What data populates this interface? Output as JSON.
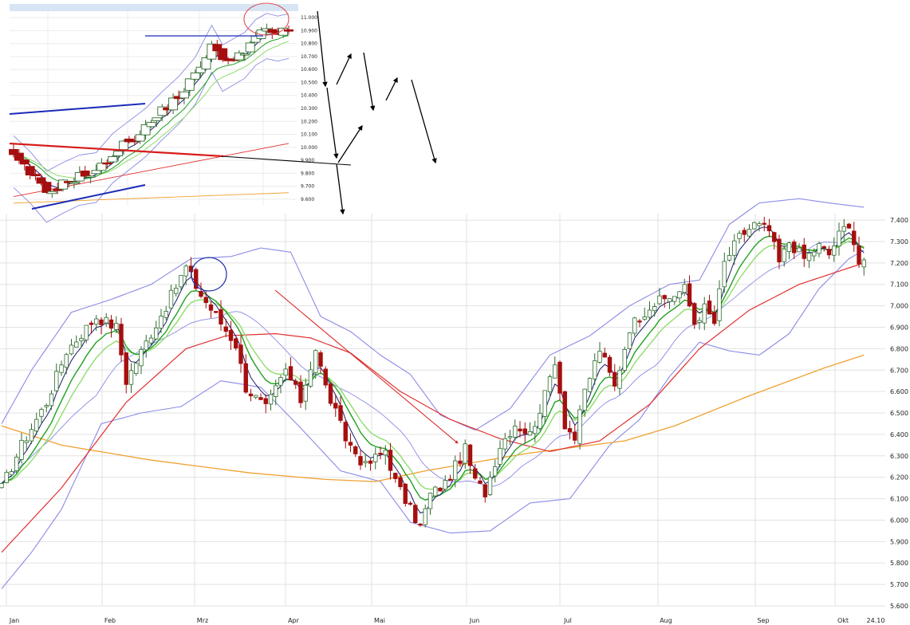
{
  "colors": {
    "bull_fill": "#ffffff",
    "bear_fill": "#a50f0f",
    "candle_edge_bull": "#2e6b2e",
    "sma_fast": "#1a1a6e",
    "ema_green1": "#1fa01f",
    "ema_green2": "#8fdc6b",
    "bollinger": "#8a8ae6",
    "sma_red": "#e03030",
    "sma_orange": "#f0a030",
    "grid": "#e2e2e2",
    "trend_blue": "#1a2bb8",
    "trend_red": "#d81b1b",
    "annotation": "#000000",
    "circle_blue": "#2233aa",
    "circle_red": "#e05050"
  },
  "chart_data": [
    {
      "id": "main",
      "type": "candlestick",
      "xlabel": "",
      "ylabel": "",
      "x_tick_labels": [
        "Jan",
        "Feb",
        "Mrz",
        "Apr",
        "Mai",
        "Jun",
        "Jul",
        "Aug",
        "Sep",
        "Okt",
        "24.10"
      ],
      "y_tick_labels": [
        "7.400",
        "7.300",
        "7.200",
        "7.100",
        "7.000",
        "6.900",
        "6.800",
        "6.700",
        "6.600",
        "6.500",
        "6.400",
        "6.300",
        "6.200",
        "6.100",
        "6.000",
        "5.900",
        "5.800",
        "5.700",
        "5.600"
      ],
      "ylim": [
        5600,
        7430
      ],
      "grid": true,
      "last_close": 7190,
      "close_path": [
        [
          0,
          6150
        ],
        [
          4,
          6350
        ],
        [
          9,
          6550
        ],
        [
          13,
          6790
        ],
        [
          19,
          6950
        ],
        [
          23,
          6900
        ],
        [
          25,
          6650
        ],
        [
          29,
          6830
        ],
        [
          33,
          7000
        ],
        [
          37,
          7180
        ],
        [
          40,
          7050
        ],
        [
          44,
          6920
        ],
        [
          47,
          6820
        ],
        [
          49,
          6620
        ],
        [
          53,
          6520
        ],
        [
          57,
          6700
        ],
        [
          60,
          6560
        ],
        [
          63,
          6800
        ],
        [
          65,
          6620
        ],
        [
          69,
          6380
        ],
        [
          73,
          6250
        ],
        [
          77,
          6330
        ],
        [
          79,
          6180
        ],
        [
          82,
          6050
        ],
        [
          84,
          5970
        ],
        [
          86,
          6120
        ],
        [
          89,
          6170
        ],
        [
          93,
          6330
        ],
        [
          95,
          6180
        ],
        [
          97,
          6130
        ],
        [
          100,
          6350
        ],
        [
          103,
          6450
        ],
        [
          106,
          6400
        ],
        [
          109,
          6580
        ],
        [
          111,
          6750
        ],
        [
          113,
          6450
        ],
        [
          115,
          6380
        ],
        [
          117,
          6600
        ],
        [
          120,
          6800
        ],
        [
          123,
          6620
        ],
        [
          126,
          6900
        ],
        [
          130,
          7000
        ],
        [
          134,
          7040
        ],
        [
          137,
          7080
        ],
        [
          139,
          6920
        ],
        [
          141,
          6990
        ],
        [
          143,
          6920
        ],
        [
          145,
          7200
        ],
        [
          148,
          7320
        ],
        [
          151,
          7380
        ],
        [
          154,
          7350
        ],
        [
          156,
          7200
        ],
        [
          158,
          7300
        ],
        [
          161,
          7220
        ],
        [
          164,
          7280
        ],
        [
          166,
          7240
        ],
        [
          168,
          7330
        ],
        [
          170,
          7390
        ],
        [
          172,
          7200
        ],
        [
          173,
          7190
        ]
      ],
      "sma_red": [
        [
          0,
          5850
        ],
        [
          12,
          6150
        ],
        [
          25,
          6550
        ],
        [
          37,
          6800
        ],
        [
          45,
          6860
        ],
        [
          55,
          6870
        ],
        [
          62,
          6850
        ],
        [
          70,
          6780
        ],
        [
          80,
          6600
        ],
        [
          90,
          6470
        ],
        [
          100,
          6380
        ],
        [
          110,
          6320
        ],
        [
          120,
          6370
        ],
        [
          130,
          6540
        ],
        [
          140,
          6800
        ],
        [
          150,
          6980
        ],
        [
          160,
          7100
        ],
        [
          173,
          7200
        ]
      ],
      "sma_orange": [
        [
          0,
          6440
        ],
        [
          12,
          6350
        ],
        [
          30,
          6280
        ],
        [
          50,
          6220
        ],
        [
          65,
          6190
        ],
        [
          75,
          6180
        ],
        [
          85,
          6230
        ],
        [
          95,
          6270
        ],
        [
          105,
          6310
        ],
        [
          115,
          6340
        ],
        [
          125,
          6370
        ],
        [
          135,
          6440
        ],
        [
          150,
          6580
        ],
        [
          165,
          6710
        ],
        [
          173,
          6770
        ]
      ],
      "bb_upper": [
        [
          0,
          6450
        ],
        [
          6,
          6700
        ],
        [
          14,
          6970
        ],
        [
          22,
          7030
        ],
        [
          30,
          7100
        ],
        [
          38,
          7220
        ],
        [
          46,
          7230
        ],
        [
          52,
          7270
        ],
        [
          58,
          7250
        ],
        [
          64,
          6950
        ],
        [
          70,
          6880
        ],
        [
          76,
          6770
        ],
        [
          82,
          6680
        ],
        [
          88,
          6490
        ],
        [
          95,
          6420
        ],
        [
          102,
          6520
        ],
        [
          110,
          6770
        ],
        [
          118,
          6860
        ],
        [
          126,
          7000
        ],
        [
          134,
          7100
        ],
        [
          140,
          7120
        ],
        [
          146,
          7380
        ],
        [
          152,
          7480
        ],
        [
          160,
          7500
        ],
        [
          166,
          7480
        ],
        [
          173,
          7460
        ]
      ],
      "bb_lower": [
        [
          0,
          5680
        ],
        [
          6,
          5850
        ],
        [
          12,
          6050
        ],
        [
          20,
          6450
        ],
        [
          28,
          6500
        ],
        [
          36,
          6530
        ],
        [
          44,
          6650
        ],
        [
          52,
          6620
        ],
        [
          60,
          6430
        ],
        [
          68,
          6230
        ],
        [
          76,
          6180
        ],
        [
          82,
          5990
        ],
        [
          90,
          5940
        ],
        [
          98,
          5950
        ],
        [
          106,
          6080
        ],
        [
          114,
          6100
        ],
        [
          122,
          6350
        ],
        [
          128,
          6470
        ],
        [
          134,
          6670
        ],
        [
          140,
          6830
        ],
        [
          146,
          6790
        ],
        [
          152,
          6770
        ],
        [
          158,
          6870
        ],
        [
          164,
          7080
        ],
        [
          170,
          7220
        ],
        [
          173,
          7260
        ]
      ],
      "annotations": [
        "down-trend-arrow",
        "top-circle"
      ]
    },
    {
      "id": "inset",
      "type": "candlestick",
      "xlabel": "",
      "ylabel": "",
      "y_tick_labels": [
        "11.000",
        "10.900",
        "10.800",
        "10.700",
        "10.600",
        "10.500",
        "10.400",
        "10.300",
        "10.200",
        "10.100",
        "10.000",
        "9.900",
        "9.800",
        "9.700",
        "9.600"
      ],
      "ylim": [
        9550,
        11050
      ],
      "grid": true,
      "close_path": [
        [
          0,
          9920
        ],
        [
          3,
          9800
        ],
        [
          6,
          9650
        ],
        [
          9,
          9720
        ],
        [
          12,
          9780
        ],
        [
          15,
          9800
        ],
        [
          18,
          9950
        ],
        [
          21,
          10050
        ],
        [
          24,
          10150
        ],
        [
          27,
          10280
        ],
        [
          30,
          10400
        ],
        [
          33,
          10550
        ],
        [
          36,
          10800
        ],
        [
          38,
          10650
        ],
        [
          40,
          10700
        ],
        [
          42,
          10750
        ],
        [
          44,
          10850
        ],
        [
          46,
          10900
        ],
        [
          48,
          10880
        ],
        [
          50,
          10900
        ]
      ],
      "annotations": [
        "resistance-line",
        "support-line",
        "red-level",
        "blue-trend-upper",
        "blue-trend-lower",
        "top-circle",
        "zigzag-arrows"
      ]
    }
  ]
}
